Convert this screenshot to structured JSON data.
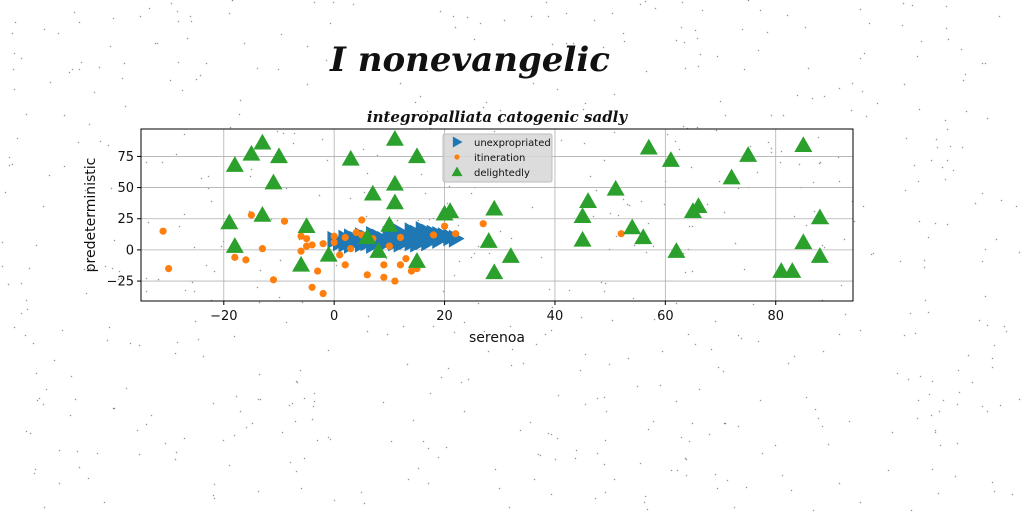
{
  "suptitle": "I nonevangelic",
  "chart_data": {
    "type": "scatter",
    "title": "integropalliata catogenic sadly",
    "xlabel": "serenoa",
    "ylabel": "predeterministic",
    "xlim": [
      -35,
      94
    ],
    "ylim": [
      -41,
      97
    ],
    "xticks": [
      -20,
      0,
      20,
      40,
      60,
      80
    ],
    "yticks": [
      -25,
      0,
      25,
      50,
      75
    ],
    "grid": true,
    "legend_position": "upper-center",
    "series": [
      {
        "name": "unexpropriated",
        "marker": "triangle-right",
        "color": "#1f77b4",
        "points": [
          [
            0,
            8
          ],
          [
            1,
            6
          ],
          [
            2,
            9
          ],
          [
            2,
            5
          ],
          [
            3,
            10
          ],
          [
            3,
            4
          ],
          [
            4,
            8
          ],
          [
            5,
            11
          ],
          [
            5,
            5
          ],
          [
            6,
            9
          ],
          [
            6,
            6
          ],
          [
            7,
            12
          ],
          [
            7,
            4
          ],
          [
            8,
            10
          ],
          [
            8,
            7
          ],
          [
            9,
            8
          ],
          [
            9,
            5
          ],
          [
            10,
            12
          ],
          [
            10,
            9
          ],
          [
            11,
            6
          ],
          [
            11,
            10
          ],
          [
            12,
            14
          ],
          [
            12,
            8
          ],
          [
            12,
            5
          ],
          [
            13,
            11
          ],
          [
            13,
            7
          ],
          [
            14,
            15
          ],
          [
            14,
            10
          ],
          [
            14,
            6
          ],
          [
            15,
            13
          ],
          [
            15,
            9
          ],
          [
            15,
            5
          ],
          [
            16,
            16
          ],
          [
            16,
            11
          ],
          [
            16,
            7
          ],
          [
            17,
            14
          ],
          [
            17,
            10
          ],
          [
            17,
            6
          ],
          [
            18,
            13
          ],
          [
            18,
            9
          ],
          [
            19,
            12
          ],
          [
            19,
            8
          ],
          [
            20,
            11
          ],
          [
            21,
            10
          ],
          [
            22,
            9
          ]
        ]
      },
      {
        "name": "itineration",
        "marker": "circle",
        "color": "#ff7f0e",
        "points": [
          [
            -31,
            15
          ],
          [
            -30,
            -15
          ],
          [
            -18,
            -6
          ],
          [
            -16,
            -8
          ],
          [
            -15,
            28
          ],
          [
            -13,
            1
          ],
          [
            -11,
            -24
          ],
          [
            -9,
            23
          ],
          [
            -6,
            -1
          ],
          [
            -6,
            11
          ],
          [
            -5,
            9
          ],
          [
            -5,
            3
          ],
          [
            -4,
            4
          ],
          [
            -4,
            -30
          ],
          [
            -3,
            -17
          ],
          [
            -2,
            5
          ],
          [
            -2,
            -35
          ],
          [
            0,
            11
          ],
          [
            0,
            6
          ],
          [
            1,
            -4
          ],
          [
            2,
            10
          ],
          [
            2,
            -12
          ],
          [
            3,
            1
          ],
          [
            4,
            14
          ],
          [
            5,
            24
          ],
          [
            5,
            12
          ],
          [
            6,
            -20
          ],
          [
            7,
            9
          ],
          [
            9,
            -12
          ],
          [
            9,
            -22
          ],
          [
            10,
            3
          ],
          [
            11,
            -25
          ],
          [
            12,
            -12
          ],
          [
            12,
            10
          ],
          [
            13,
            -7
          ],
          [
            14,
            -17
          ],
          [
            15,
            -15
          ],
          [
            18,
            12
          ],
          [
            20,
            19
          ],
          [
            22,
            13
          ],
          [
            27,
            21
          ],
          [
            52,
            13
          ]
        ]
      },
      {
        "name": "delightedly",
        "marker": "triangle-up",
        "color": "#2ca02c",
        "points": [
          [
            -19,
            22
          ],
          [
            -18,
            68
          ],
          [
            -18,
            3
          ],
          [
            -15,
            77
          ],
          [
            -13,
            86
          ],
          [
            -13,
            28
          ],
          [
            -11,
            54
          ],
          [
            -10,
            75
          ],
          [
            -6,
            -12
          ],
          [
            -5,
            19
          ],
          [
            -1,
            -4
          ],
          [
            3,
            73
          ],
          [
            6,
            10
          ],
          [
            7,
            45
          ],
          [
            8,
            -1
          ],
          [
            10,
            20
          ],
          [
            11,
            89
          ],
          [
            11,
            53
          ],
          [
            11,
            38
          ],
          [
            15,
            75
          ],
          [
            15,
            -9
          ],
          [
            20,
            29
          ],
          [
            21,
            31
          ],
          [
            28,
            7
          ],
          [
            29,
            33
          ],
          [
            29,
            -18
          ],
          [
            32,
            -5
          ],
          [
            45,
            27
          ],
          [
            45,
            8
          ],
          [
            46,
            39
          ],
          [
            51,
            49
          ],
          [
            54,
            18
          ],
          [
            56,
            10
          ],
          [
            57,
            82
          ],
          [
            61,
            72
          ],
          [
            62,
            -1
          ],
          [
            65,
            31
          ],
          [
            66,
            35
          ],
          [
            72,
            58
          ],
          [
            75,
            76
          ],
          [
            81,
            -17
          ],
          [
            83,
            -17
          ],
          [
            85,
            84
          ],
          [
            85,
            6
          ],
          [
            88,
            26
          ],
          [
            88,
            -5
          ]
        ]
      }
    ]
  }
}
